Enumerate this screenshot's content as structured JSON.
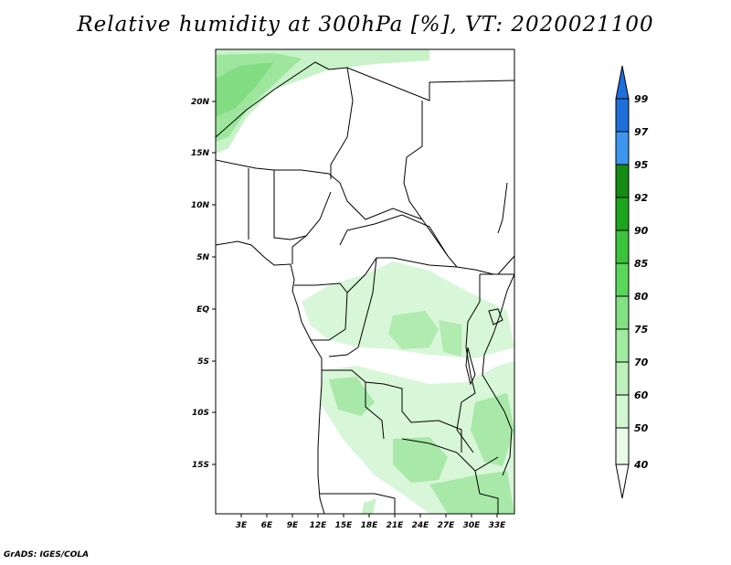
{
  "title": "Relative humidity at 300hPa [%], VT: 2020021100",
  "credit": "GrADS: IGES/COLA",
  "map": {
    "lat_labels": [
      "20N",
      "15N",
      "10N",
      "5N",
      "EQ",
      "5S",
      "10S",
      "15S"
    ],
    "lon_labels": [
      "3E",
      "6E",
      "9E",
      "12E",
      "15E",
      "18E",
      "21E",
      "24E",
      "27E",
      "30E",
      "33E"
    ],
    "lat_range": [
      -20,
      24.5
    ],
    "lon_range": [
      0,
      35
    ]
  },
  "colorbar": {
    "levels": [
      "99",
      "97",
      "95",
      "92",
      "90",
      "85",
      "80",
      "75",
      "70",
      "60",
      "50",
      "40"
    ],
    "colors": [
      "#1e6fd9",
      "#1e6fd9",
      "#3c96f0",
      "#148c14",
      "#1ea51e",
      "#3cc33c",
      "#5ad75a",
      "#82e182",
      "#a0eba0",
      "#bef0be",
      "#d2f5d2",
      "#e8fae8",
      "#ffffff"
    ]
  }
}
